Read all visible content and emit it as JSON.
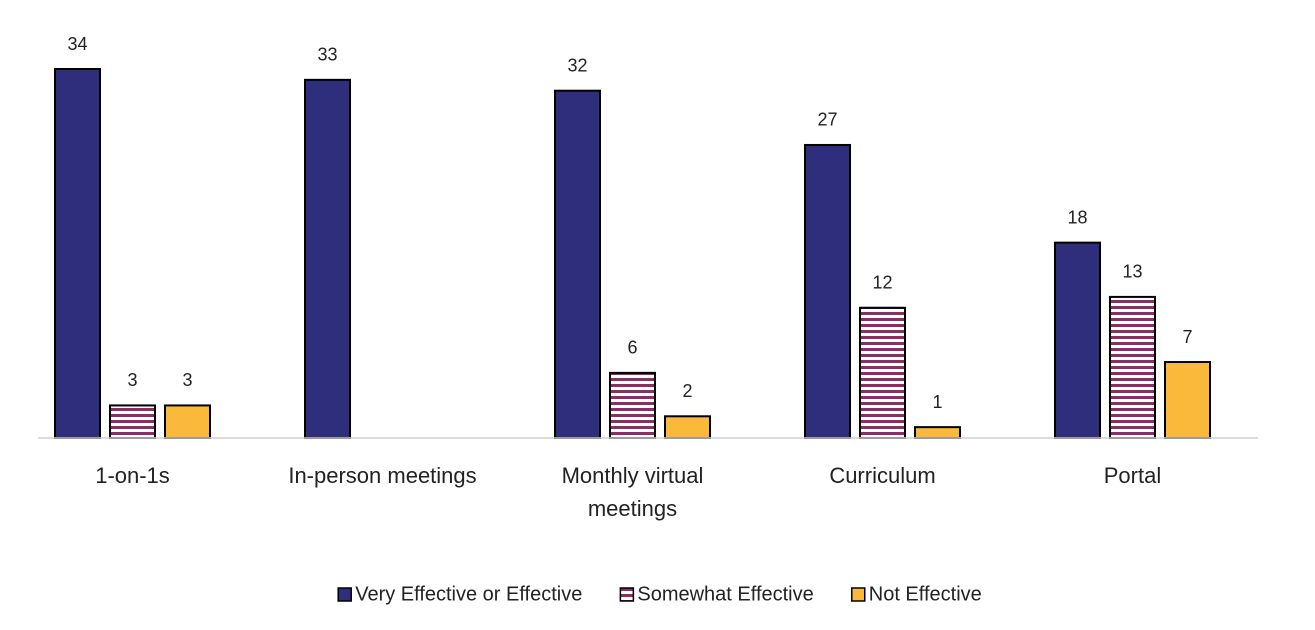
{
  "chart_data": {
    "type": "bar",
    "categories": [
      "1-on-1s",
      "In-person meetings",
      "Monthly virtual meetings",
      "Curriculum",
      "Portal"
    ],
    "series": [
      {
        "name": "Very Effective or Effective",
        "color": "#2e2e7c",
        "values": [
          34,
          33,
          32,
          27,
          18
        ]
      },
      {
        "name": "Somewhat Effective",
        "color": "#8e2c66",
        "pattern": "horizontal-stripes",
        "values": [
          3,
          null,
          6,
          12,
          13
        ]
      },
      {
        "name": "Not Effective",
        "color": "#fbb93b",
        "values": [
          3,
          null,
          2,
          1,
          7
        ]
      }
    ],
    "ylim": [
      0,
      34
    ],
    "legend": "bottom"
  }
}
